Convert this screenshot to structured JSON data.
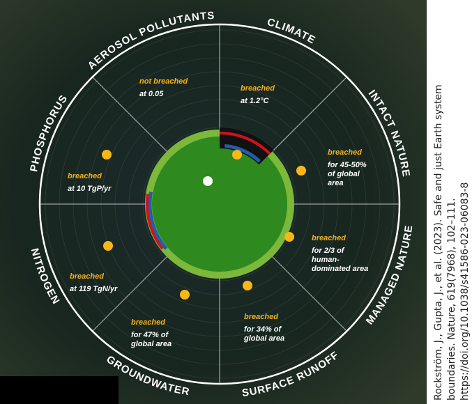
{
  "segments": [
    {
      "name": "AEROSOL POLLUTANTS",
      "status": "not breached",
      "detail": [
        "at 0.05"
      ]
    },
    {
      "name": "CLIMATE",
      "status": "breached",
      "detail": [
        "at 1.2°C"
      ]
    },
    {
      "name": "INTACT NATURE",
      "status": "breached",
      "detail": [
        "for 45-50%",
        "of global",
        "area"
      ]
    },
    {
      "name": "MANAGED NATURE",
      "status": "breached",
      "detail": [
        "for 2/3 of",
        "human-",
        "dominated area"
      ]
    },
    {
      "name": "SURFACE RUNOFF",
      "status": "breached",
      "detail": [
        "for 34% of",
        "global area"
      ]
    },
    {
      "name": "GROUNDWATER",
      "status": "breached",
      "detail": [
        "for  47% of",
        "global area"
      ]
    },
    {
      "name": "NITROGEN",
      "status": "breached",
      "detail": [
        "at 119 TgN/yr"
      ]
    },
    {
      "name": "PHOSPHORUS",
      "status": "breached",
      "detail": [
        "at 10 TgP/yr"
      ]
    }
  ],
  "citation": [
    "Rockström, J., Gupta, J., et al. (2023). Safe and just Earth system",
    "boundaries. Nature, 619(7968), 102–111.",
    "https://doi.org/10.1038/s41586-023-06083-8"
  ]
}
